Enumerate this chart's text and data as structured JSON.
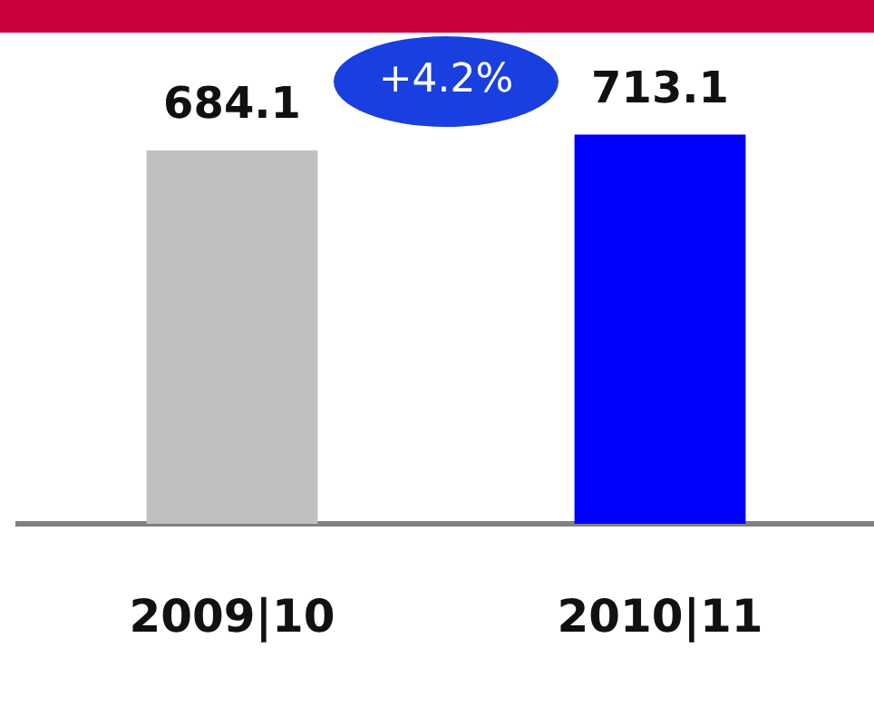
{
  "chart_data": {
    "type": "bar",
    "categories": [
      "2009|10",
      "2010|11"
    ],
    "values": [
      684.1,
      713.1
    ],
    "colors": [
      "#c0c0c0",
      "#0000ff"
    ],
    "data_labels": true,
    "grid": false,
    "legend": false,
    "tick_labels": "x",
    "annotations": [
      "+4.2%"
    ]
  }
}
